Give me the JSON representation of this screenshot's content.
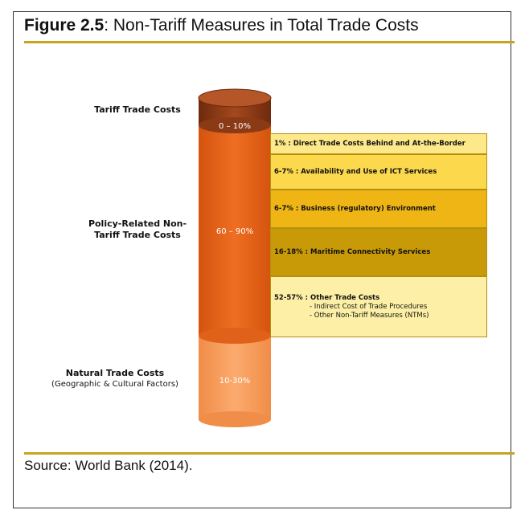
{
  "figure": {
    "number": "Figure 2.5",
    "caption": ": Non-Tariff Measures in Total Trade Costs",
    "source": "Source: World Bank (2014)."
  },
  "cylinder": {
    "segments": [
      {
        "range": "0 – 10%",
        "color": "#8b3a16"
      },
      {
        "range": "60 – 90%",
        "color": "#e8661c"
      },
      {
        "range": "10-30%",
        "color": "#f9a262"
      }
    ]
  },
  "left_labels": {
    "tariff": "Tariff Trade Costs",
    "policy_line1": "Policy-Related Non-",
    "policy_line2": "Tariff Trade Costs",
    "natural": "Natural Trade Costs",
    "natural_sub": "(Geographic & Cultural Factors)"
  },
  "breakdown": [
    {
      "text": "1% : Direct Trade Costs Behind and At-the-Border",
      "color": "#fde98a"
    },
    {
      "text": "6-7% : Availability and Use of ICT Services",
      "color": "#fbd84c"
    },
    {
      "text": "6-7% : Business (regulatory) Environment",
      "color": "#efb514"
    },
    {
      "text": "16-18% : Maritime Connectivity Services",
      "color": "#c89a08"
    },
    {
      "text": "52-57% : Other Trade Costs",
      "color": "#fdf0a6",
      "details": [
        "- Indirect Cost of Trade Procedures",
        "- Other Non-Tariff Measures (NTMs)"
      ]
    }
  ]
}
